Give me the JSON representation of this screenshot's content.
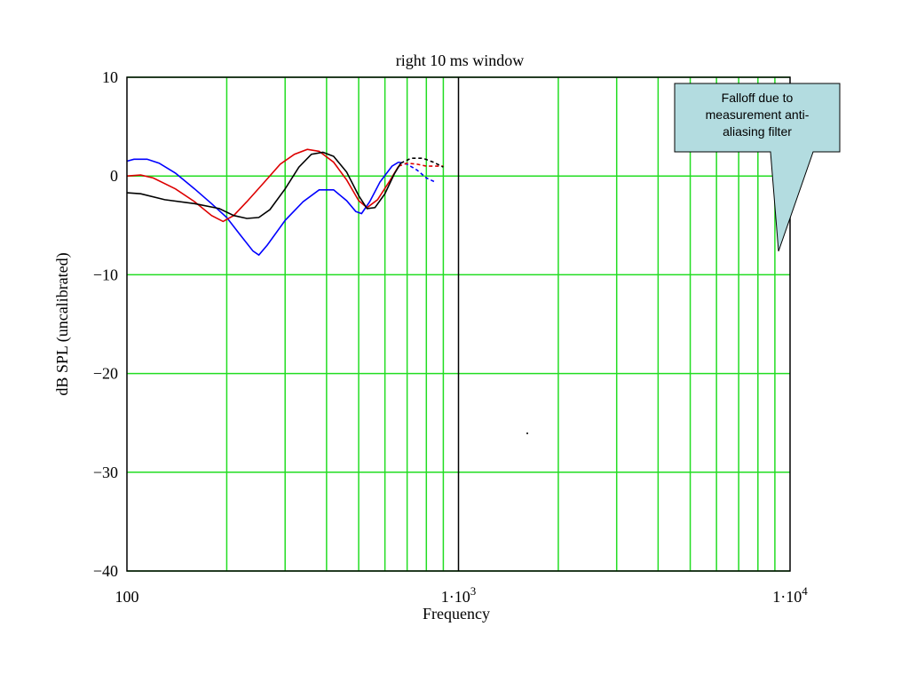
{
  "chart_data": {
    "type": "line",
    "title": "right  10 ms window",
    "xlabel": "Frequency",
    "ylabel": "dB SPL (uncalibrated)",
    "x_scale": "log",
    "xlim": [
      100,
      10000
    ],
    "ylim": [
      -40,
      10
    ],
    "grid": true,
    "colors": {
      "grid": "#22dd22",
      "axes": "#000000",
      "callout_fill": "#b3dce0"
    },
    "y_ticks": [
      {
        "value": 10,
        "label": "10"
      },
      {
        "value": 0,
        "label": "0"
      },
      {
        "value": -10,
        "label": "−10"
      },
      {
        "value": -20,
        "label": "−20"
      },
      {
        "value": -30,
        "label": "−30"
      },
      {
        "value": -40,
        "label": "−40"
      }
    ],
    "x_ticks": [
      {
        "value": 100,
        "base": "100",
        "exp": ""
      },
      {
        "value": 1000,
        "base": "1·10",
        "exp": "3"
      },
      {
        "value": 10000,
        "base": "1·10",
        "exp": "4"
      }
    ],
    "series": [
      {
        "color": "#0000ff",
        "solid": [
          [
            100,
            1.5
          ],
          [
            105,
            1.7
          ],
          [
            115,
            1.7
          ],
          [
            125,
            1.3
          ],
          [
            140,
            0.3
          ],
          [
            160,
            -1.3
          ],
          [
            180,
            -2.8
          ],
          [
            200,
            -4.2
          ],
          [
            220,
            -6.0
          ],
          [
            240,
            -7.6
          ],
          [
            250,
            -8.0
          ],
          [
            265,
            -7.0
          ],
          [
            300,
            -4.5
          ],
          [
            340,
            -2.6
          ],
          [
            380,
            -1.4
          ],
          [
            420,
            -1.4
          ],
          [
            460,
            -2.5
          ],
          [
            490,
            -3.6
          ],
          [
            510,
            -3.8
          ],
          [
            540,
            -2.6
          ],
          [
            580,
            -0.6
          ],
          [
            630,
            1.0
          ],
          [
            660,
            1.4
          ]
        ],
        "dashed": [
          [
            660,
            1.4
          ],
          [
            700,
            1.2
          ],
          [
            750,
            0.6
          ],
          [
            800,
            -0.2
          ],
          [
            850,
            -0.6
          ]
        ]
      },
      {
        "color": "#dd0000",
        "solid": [
          [
            100,
            0.0
          ],
          [
            110,
            0.1
          ],
          [
            120,
            -0.2
          ],
          [
            140,
            -1.3
          ],
          [
            160,
            -2.6
          ],
          [
            180,
            -4.0
          ],
          [
            195,
            -4.6
          ],
          [
            210,
            -4.0
          ],
          [
            230,
            -2.6
          ],
          [
            260,
            -0.6
          ],
          [
            290,
            1.2
          ],
          [
            320,
            2.2
          ],
          [
            350,
            2.7
          ],
          [
            380,
            2.5
          ],
          [
            420,
            1.4
          ],
          [
            460,
            -0.4
          ],
          [
            500,
            -2.5
          ],
          [
            530,
            -3.2
          ],
          [
            570,
            -2.4
          ],
          [
            620,
            -0.5
          ],
          [
            660,
            1.0
          ]
        ],
        "dashed": [
          [
            660,
            1.0
          ],
          [
            700,
            1.3
          ],
          [
            750,
            1.2
          ],
          [
            800,
            1.0
          ],
          [
            900,
            1.0
          ]
        ]
      },
      {
        "color": "#000000",
        "solid": [
          [
            100,
            -1.7
          ],
          [
            110,
            -1.8
          ],
          [
            130,
            -2.4
          ],
          [
            160,
            -2.8
          ],
          [
            190,
            -3.3
          ],
          [
            210,
            -4.0
          ],
          [
            230,
            -4.3
          ],
          [
            250,
            -4.2
          ],
          [
            270,
            -3.4
          ],
          [
            300,
            -1.3
          ],
          [
            330,
            0.9
          ],
          [
            360,
            2.2
          ],
          [
            390,
            2.4
          ],
          [
            420,
            2.0
          ],
          [
            460,
            0.4
          ],
          [
            500,
            -2.0
          ],
          [
            530,
            -3.3
          ],
          [
            560,
            -3.2
          ],
          [
            600,
            -1.8
          ],
          [
            640,
            0.2
          ],
          [
            670,
            1.3
          ]
        ],
        "dashed": [
          [
            670,
            1.3
          ],
          [
            720,
            1.8
          ],
          [
            780,
            1.8
          ],
          [
            840,
            1.4
          ],
          [
            900,
            0.9
          ]
        ]
      }
    ],
    "annotations": [
      {
        "text": "Falloff due to measurement anti-aliasing filter",
        "lines": [
          "Falloff due to",
          "measurement anti-",
          "aliasing filter"
        ],
        "points_to": [
          9300,
          -7.8
        ]
      }
    ]
  }
}
